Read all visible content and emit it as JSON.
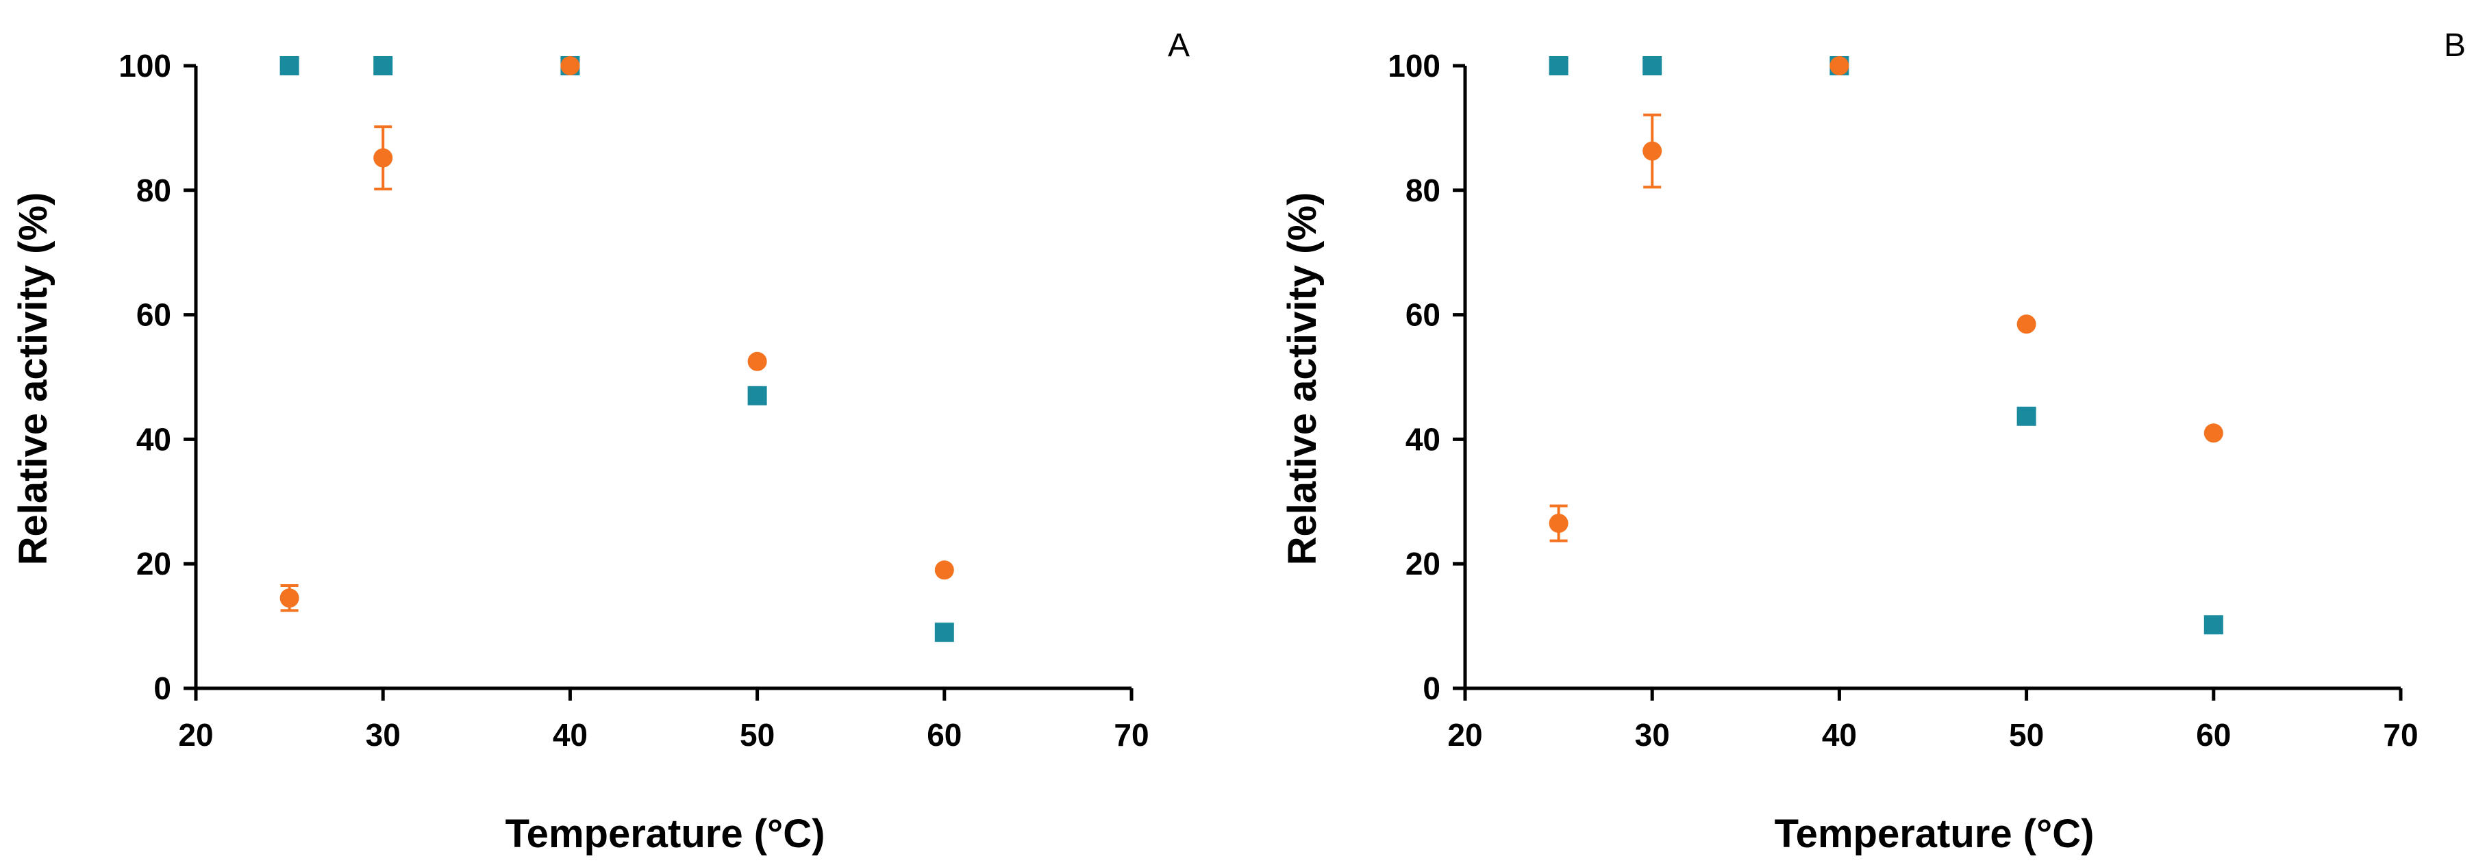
{
  "chart_data": [
    {
      "type": "scatter",
      "panel_label": "A",
      "xlabel": "Temperature (°C)",
      "ylabel": "Relative activity (%)",
      "xlim": [
        20,
        70
      ],
      "ylim": [
        0,
        100
      ],
      "xticks": [
        20,
        30,
        40,
        50,
        60,
        70
      ],
      "yticks": [
        0,
        20,
        40,
        60,
        80,
        100
      ],
      "grid": false,
      "legend": "none",
      "series": [
        {
          "marker": "square",
          "color": "#1a8a9e",
          "points": [
            {
              "x": 25,
              "y": 100
            },
            {
              "x": 30,
              "y": 100
            },
            {
              "x": 40,
              "y": 100
            },
            {
              "x": 50,
              "y": 47
            },
            {
              "x": 60,
              "y": 9
            }
          ]
        },
        {
          "marker": "circle",
          "color": "#f47321",
          "points": [
            {
              "x": 25,
              "y": 14.5,
              "err": 2
            },
            {
              "x": 30,
              "y": 85.2,
              "err": 5
            },
            {
              "x": 40,
              "y": 100
            },
            {
              "x": 50,
              "y": 52.5
            },
            {
              "x": 60,
              "y": 19
            }
          ]
        }
      ]
    },
    {
      "type": "scatter",
      "panel_label": "B",
      "xlabel": "Temperature (°C)",
      "ylabel": "Relative activity (%)",
      "xlim": [
        20,
        70
      ],
      "ylim": [
        0,
        100
      ],
      "xticks": [
        20,
        30,
        40,
        50,
        60,
        70
      ],
      "yticks": [
        0,
        20,
        40,
        60,
        80,
        100
      ],
      "grid": false,
      "legend": "none",
      "series": [
        {
          "marker": "square",
          "color": "#1a8a9e",
          "points": [
            {
              "x": 25,
              "y": 100
            },
            {
              "x": 30,
              "y": 100
            },
            {
              "x": 40,
              "y": 100
            },
            {
              "x": 50,
              "y": 43.7
            },
            {
              "x": 60,
              "y": 10.2
            }
          ]
        },
        {
          "marker": "circle",
          "color": "#f47321",
          "points": [
            {
              "x": 25,
              "y": 26.5,
              "err": 2.8
            },
            {
              "x": 30,
              "y": 86.3,
              "err": 5.8
            },
            {
              "x": 40,
              "y": 100
            },
            {
              "x": 50,
              "y": 58.5
            },
            {
              "x": 60,
              "y": 41
            }
          ]
        }
      ]
    }
  ]
}
